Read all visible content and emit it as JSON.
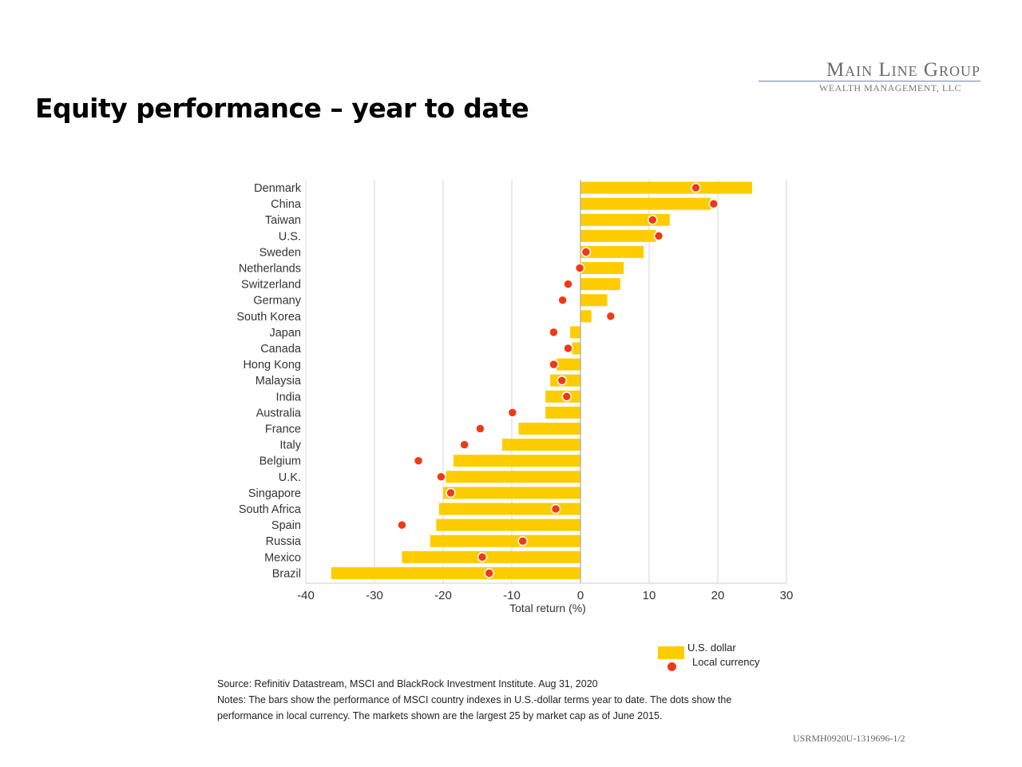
{
  "page": {
    "title": "Equity performance – year to date",
    "logo_main": "Main Line Group",
    "logo_sub": "WEALTH MANAGEMENT, LLC",
    "source": "Source: Refinitiv Datastream, MSCI and BlackRock Investment Institute. Aug 31, 2020",
    "notes_line1": "Notes: The bars show the performance of MSCI country indexes in U.S.-dollar terms year to date. The dots show the",
    "notes_line2": "performance in local currency. The markets shown are the largest 25 by market cap as of June 2015.",
    "doc_code": "USRMH0920U-1319696-1/2"
  },
  "chart_data": {
    "type": "bar",
    "orientation": "horizontal",
    "categories": [
      "Denmark",
      "China",
      "Taiwan",
      "U.S.",
      "Sweden",
      "Netherlands",
      "Switzerland",
      "Germany",
      "South Korea",
      "Japan",
      "Canada",
      "Hong Kong",
      "Malaysia",
      "India",
      "Australia",
      "France",
      "Italy",
      "Belgium",
      "U.K.",
      "Singapore",
      "South Africa",
      "Spain",
      "Russia",
      "Mexico",
      "Brazil"
    ],
    "series": [
      {
        "name": "U.S. dollar",
        "mark": "bar",
        "color": "#ffcc00",
        "values": [
          25,
          19,
          13,
          11,
          9.2,
          6.3,
          5.8,
          3.9,
          1.6,
          -1.5,
          -1.2,
          -3.5,
          -4.4,
          -5.1,
          -5.1,
          -9,
          -11.4,
          -18.5,
          -19.6,
          -20,
          -20.6,
          -21,
          -21.9,
          -26,
          -36.3
        ]
      },
      {
        "name": "Local currency",
        "mark": "dot",
        "color": "#ee3a16",
        "values": [
          16.8,
          19.4,
          10.5,
          11.4,
          0.8,
          -0.1,
          -1.8,
          -2.6,
          4.4,
          -3.9,
          -1.8,
          -3.9,
          -2.7,
          -2,
          -9.9,
          -14.6,
          -16.9,
          -23.6,
          -20.3,
          -18.9,
          -3.6,
          -26,
          -8.4,
          -14.3,
          -13.3
        ]
      }
    ],
    "xlabel": "Total return (%)",
    "xlim": [
      -40,
      30
    ],
    "xticks": [
      -40,
      -30,
      -20,
      -10,
      0,
      10,
      20,
      30
    ],
    "grid": true,
    "legend": "bottom-right"
  }
}
